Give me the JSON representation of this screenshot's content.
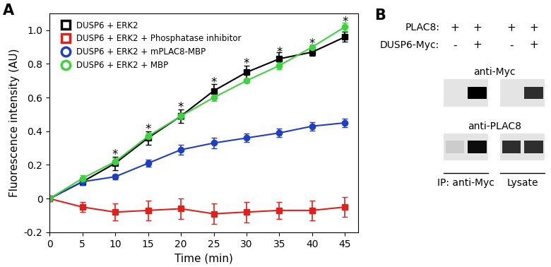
{
  "chart_data": {
    "type": "line",
    "panel_label": "A",
    "x_label": "Time (min)",
    "y_label": "Fluorescence intensity (AU)",
    "x": [
      0,
      5,
      10,
      15,
      20,
      25,
      30,
      35,
      40,
      45
    ],
    "xlim": [
      0,
      47
    ],
    "xticks": [
      0,
      5,
      10,
      15,
      20,
      25,
      30,
      35,
      40,
      45
    ],
    "ylim": [
      -0.2,
      1.1
    ],
    "yticks": [
      -0.2,
      0,
      0.2,
      0.4,
      0.6,
      0.8,
      {
        "value": 1,
        "label": "1.0"
      }
    ],
    "legend": "upper left",
    "series": [
      {
        "name": "DUSP6 + ERK2",
        "color": "#000000",
        "marker": "square",
        "values": [
          0,
          0.1,
          0.21,
          0.36,
          0.49,
          0.64,
          0.75,
          0.83,
          0.87,
          0.96
        ],
        "errors": [
          0,
          0.02,
          0.04,
          0.04,
          0.04,
          0.04,
          0.04,
          0.04,
          0.02,
          0.03
        ]
      },
      {
        "name": "DUSP6 + ERK2 + Phosphatase inhibitor",
        "color": "#e0201b",
        "marker": "square",
        "values": [
          0,
          -0.05,
          -0.08,
          -0.07,
          -0.06,
          -0.09,
          -0.08,
          -0.07,
          -0.07,
          -0.05
        ],
        "errors": [
          0,
          0.03,
          0.05,
          0.06,
          0.06,
          0.06,
          0.06,
          0.05,
          0.06,
          0.06
        ]
      },
      {
        "name": "DUSP6 + ERK2 + mPLAC8-MBP",
        "color": "#1f3fbf",
        "marker": "circle",
        "values": [
          0,
          0.1,
          0.13,
          0.21,
          0.29,
          0.33,
          0.36,
          0.39,
          0.43,
          0.45
        ],
        "errors": [
          0,
          0.02,
          0.015,
          0.02,
          0.03,
          0.03,
          0.025,
          0.025,
          0.025,
          0.025
        ]
      },
      {
        "name": "DUSP6 + ERK2 + MBP",
        "color": "#3fd13f",
        "marker": "circle",
        "values": [
          0,
          0.12,
          0.22,
          0.37,
          0.49,
          0.6,
          0.7,
          0.79,
          0.9,
          1.02
        ],
        "errors": [
          0,
          0.02,
          0.02,
          0.02,
          0.02,
          0.02,
          0.01,
          0.02,
          0.015,
          0.025
        ]
      }
    ],
    "annotations": [
      {
        "text": "*",
        "x": 10,
        "y": 0.26
      },
      {
        "text": "*",
        "x": 15,
        "y": 0.41
      },
      {
        "text": "*",
        "x": 20,
        "y": 0.54
      },
      {
        "text": "*",
        "x": 25,
        "y": 0.69
      },
      {
        "text": "*",
        "x": 30,
        "y": 0.8
      },
      {
        "text": "*",
        "x": 35,
        "y": 0.87
      },
      {
        "text": "*",
        "x": 40,
        "y": 0.92
      },
      {
        "text": "*",
        "x": 45,
        "y": 1.05
      }
    ]
  },
  "blot": {
    "panel_label": "B",
    "conditions": [
      {
        "name": "PLAC8:",
        "lanes": [
          "+",
          "+",
          "+",
          "+"
        ]
      },
      {
        "name": "DUSP6-Myc:",
        "lanes": [
          "-",
          "+",
          "-",
          "+"
        ]
      }
    ],
    "rows": [
      {
        "label": "anti-Myc",
        "intensity": [
          0,
          1,
          0,
          0.8
        ]
      },
      {
        "label": "anti-PLAC8",
        "intensity": [
          0.1,
          0.95,
          0.8,
          0.8
        ]
      }
    ],
    "groups": [
      {
        "label": "IP: anti-Myc",
        "lanes": [
          0,
          1
        ]
      },
      {
        "label": "Lysate",
        "lanes": [
          2,
          3
        ]
      }
    ]
  }
}
